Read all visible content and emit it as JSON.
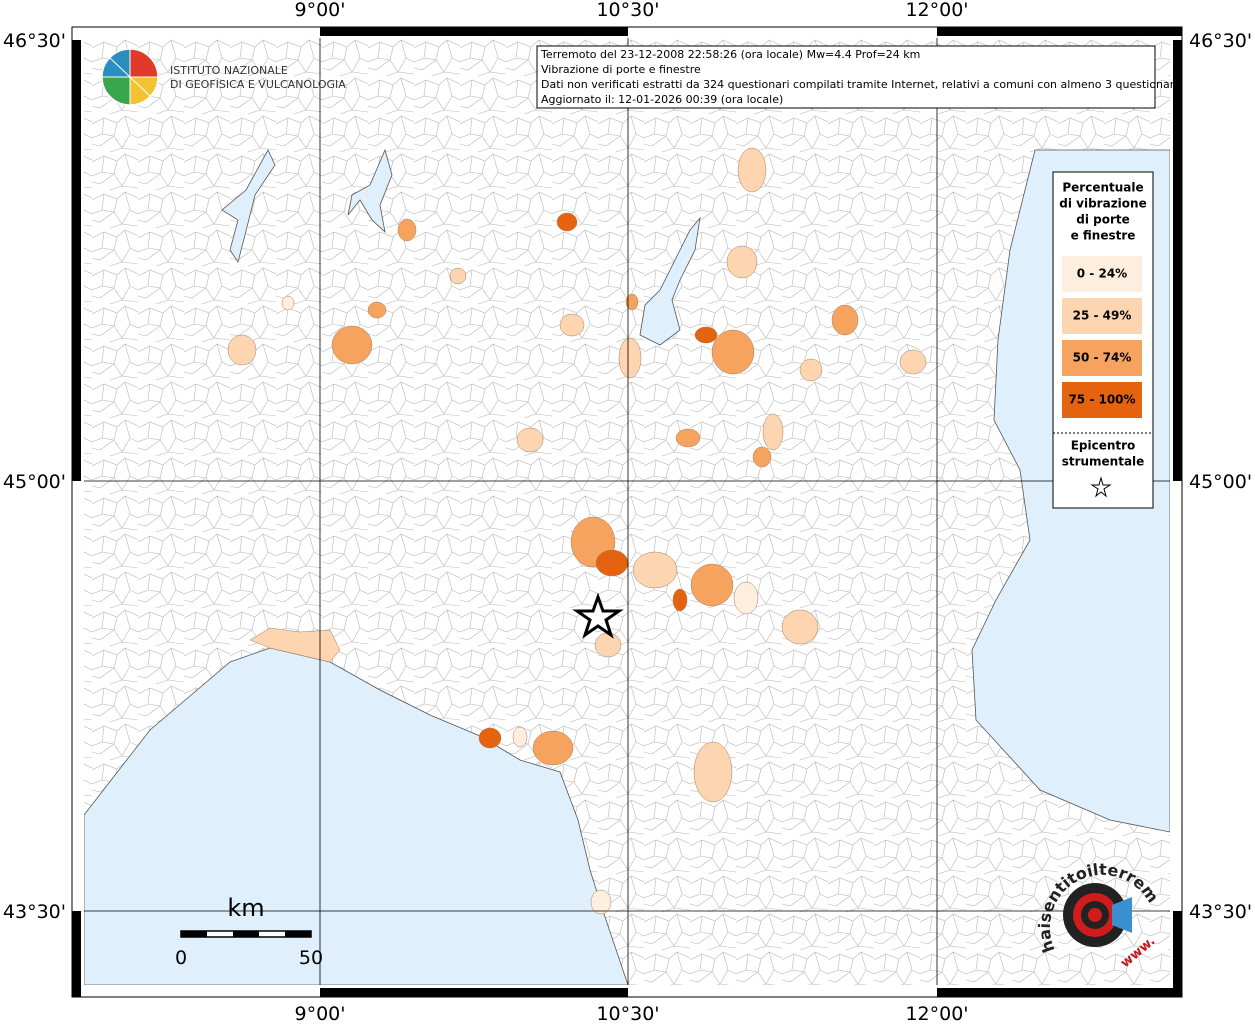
{
  "header": {
    "logo_lines": [
      "ISTITUTO NAZIONALE",
      "DI GEOFISICA E VULCANOLOGIA"
    ]
  },
  "info": {
    "lines": [
      "Terremoto del 23-12-2008 22:58:26 (ora locale) Mw=4.4 Prof=24 km",
      "Vibrazione di porte e finestre",
      "Dati non verificati estratti da 324 questionari compilati tramite Internet, relativi a comuni con almeno 3 questionari.",
      "Aggiornato il: 12-01-2026 00:39 (ora locale)"
    ]
  },
  "map": {
    "lon_labels": [
      "9°00'",
      "10°30'",
      "12°00'"
    ],
    "lat_labels": [
      "46°30'",
      "45°00'",
      "43°30'"
    ]
  },
  "legend": {
    "title_lines": [
      "Percentuale",
      "di vibrazione",
      "di porte",
      "e finestre"
    ],
    "classes": [
      {
        "label": "0 - 24%",
        "color": "#fdeedd"
      },
      {
        "label": "25 - 49%",
        "color": "#fdd5b0"
      },
      {
        "label": "50 - 74%",
        "color": "#f6a35f"
      },
      {
        "label": "75 - 100%",
        "color": "#e5620f"
      }
    ],
    "epicenter_lines": [
      "Epicentro",
      "strumentale"
    ]
  },
  "scale": {
    "unit": "km",
    "labels": [
      "0",
      "50"
    ]
  },
  "badge": {
    "text": "haisentitoilterremoto.it",
    "url": "www."
  }
}
